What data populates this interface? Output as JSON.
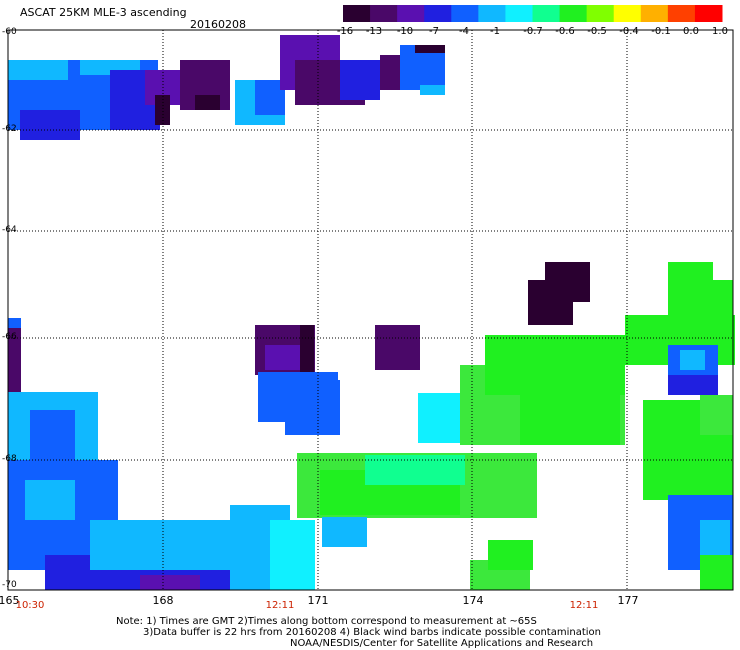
{
  "header": {
    "title": "ASCAT 25KM MLE-3 ascending",
    "date": "20160208"
  },
  "colorbar": {
    "labels": [
      "-16",
      "-13",
      "-10",
      "-7",
      "-4",
      "-1",
      "-0.7",
      "-0.6",
      "-0.5",
      "-0.4",
      "-0.1",
      "0.0",
      "1.0"
    ],
    "colors": [
      "#2a0030",
      "#4a0868",
      "#5a10b0",
      "#2020e0",
      "#1060ff",
      "#10b8ff",
      "#10f0ff",
      "#10ff90",
      "#20f020",
      "#80ff00",
      "#ffff00",
      "#ffb000",
      "#ff4000",
      "#ff0000"
    ]
  },
  "axes": {
    "lat_labels": [
      "-60",
      "-62",
      "-64",
      "-66",
      "-68",
      "-70"
    ],
    "lon_labels": [
      "165",
      "168",
      "171",
      "174",
      "177"
    ],
    "time_labels": [
      "10:30",
      "12:11",
      "12:11"
    ]
  },
  "notes": {
    "line1": "Note: 1) Times are GMT 2)Times along bottom correspond to measurement at ~65S",
    "line2": "3)Data buffer is 22 hrs from 20160208 4) Black wind barbs indicate possible contamination",
    "line3": "NOAA/NESDIS/Center for Satellite Applications and Research"
  }
}
